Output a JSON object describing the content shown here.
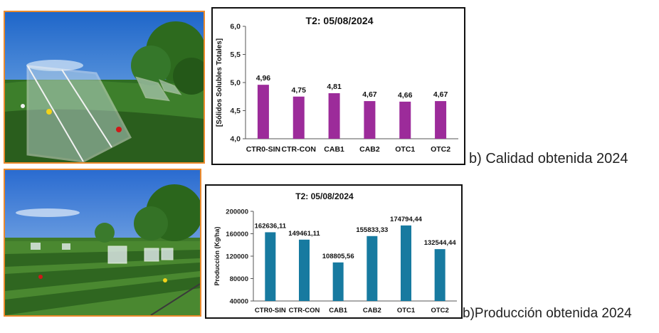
{
  "captions": {
    "top": "b) Calidad obtenida 2024",
    "bottom": "b)Producción obtenida 2024"
  },
  "photos": {
    "top": "field-greenhouse-photo",
    "bottom": "field-rows-photo"
  },
  "chart_data": [
    {
      "type": "bar",
      "title": "T2: 05/08/2024",
      "xlabel": "",
      "ylabel": "[Sólidos Solubles Totales]",
      "categories": [
        "CTR0-SIN",
        "CTR-CON",
        "CAB1",
        "CAB2",
        "OTC1",
        "OTC2"
      ],
      "values": [
        4.96,
        4.75,
        4.81,
        4.67,
        4.66,
        4.67
      ],
      "value_labels": [
        "4,96",
        "4,75",
        "4,81",
        "4,67",
        "4,66",
        "4,67"
      ],
      "ylim": [
        4.0,
        6.0
      ],
      "yticks": [
        4.0,
        4.5,
        5.0,
        5.5,
        6.0
      ],
      "ytick_labels": [
        "4,0",
        "4,5",
        "5,0",
        "5,5",
        "6,0"
      ],
      "grid": false,
      "color": "#9c2b9a"
    },
    {
      "type": "bar",
      "title": "T2: 05/08/2024",
      "xlabel": "",
      "ylabel": "Producción (Kg/ha)",
      "categories": [
        "CTR0-SIN",
        "CTR-CON",
        "CAB1",
        "CAB2",
        "OTC1",
        "OTC2"
      ],
      "values": [
        162636.11,
        149461.11,
        108805.56,
        155833.33,
        174794.44,
        132544.44
      ],
      "value_labels": [
        "162636,11",
        "149461,11",
        "108805,56",
        "155833,33",
        "174794,44",
        "132544,44"
      ],
      "ylim": [
        40000,
        200000
      ],
      "yticks": [
        40000,
        80000,
        120000,
        160000,
        200000
      ],
      "ytick_labels": [
        "40000",
        "80000",
        "120000",
        "160000",
        "200000"
      ],
      "grid": false,
      "color": "#177aa0"
    }
  ]
}
